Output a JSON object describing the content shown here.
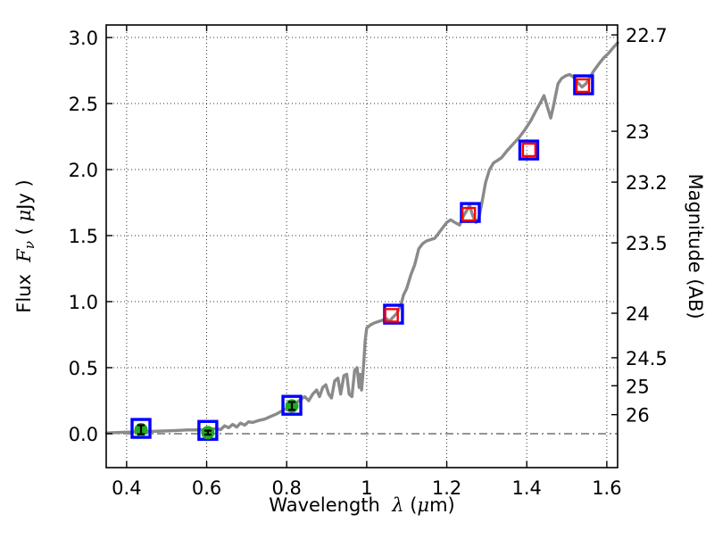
{
  "chart_data": {
    "type": "line",
    "title": "",
    "xlabel": "Wavelength λ (μm)",
    "ylabel_left": "Flux Fν ( μJy )",
    "ylabel_right": "Magnitude (AB)",
    "xlabel_parts": [
      {
        "t": "Wavelength  ",
        "f": "sans"
      },
      {
        "t": "λ",
        "f": "it"
      },
      {
        "t": " (",
        "f": "sans"
      },
      {
        "t": "μ",
        "f": "it"
      },
      {
        "t": "m)",
        "f": "sans"
      }
    ],
    "ylabel_left_parts": [
      {
        "t": "Flux  ",
        "f": "sans"
      },
      {
        "t": "F",
        "f": "it"
      },
      {
        "t": "ν",
        "f": "it",
        "sub": true
      },
      {
        "t": " ( ",
        "f": "sans"
      },
      {
        "t": "μ",
        "f": "it"
      },
      {
        "t": "Jy )",
        "f": "sans"
      }
    ],
    "xlim": [
      0.349,
      1.627
    ],
    "ylim": [
      -0.257,
      3.095
    ],
    "grid": true,
    "x_ticks": [
      0.4,
      0.6,
      0.8,
      1.0,
      1.2,
      1.4,
      1.6
    ],
    "x_tick_labels": [
      "0.4",
      "0.6",
      "0.8",
      "1",
      "1.2",
      "1.4",
      "1.6"
    ],
    "y_ticks_left": [
      0.0,
      0.5,
      1.0,
      1.5,
      2.0,
      2.5,
      3.0
    ],
    "y_tick_labels_left": [
      "0.0",
      "0.5",
      "1.0",
      "1.5",
      "2.0",
      "2.5",
      "3.0"
    ],
    "y_ticks_right": [
      {
        "label": "22.7",
        "flux": 3.02
      },
      {
        "label": "23",
        "flux": 2.29
      },
      {
        "label": "23.2",
        "flux": 1.905
      },
      {
        "label": "23.5",
        "flux": 1.445
      },
      {
        "label": "24",
        "flux": 0.912
      },
      {
        "label": "24.5",
        "flux": 0.575
      },
      {
        "label": "25",
        "flux": 0.363
      },
      {
        "label": "26",
        "flux": 0.144
      }
    ],
    "zero_line_flux": 0.0,
    "colors": {
      "spectrum": "#8a8a8a",
      "blue_square": "#0000ff",
      "red_square": "#ff0000",
      "green_circle": "#22aa22",
      "error_bar": "#000000",
      "grid": "#000000",
      "zero_line": "#555555",
      "spine": "#000000"
    },
    "series": [
      {
        "name": "model-spectrum",
        "type": "line",
        "x_y": [
          [
            0.35,
            0.005
          ],
          [
            0.37,
            0.008
          ],
          [
            0.39,
            0.01
          ],
          [
            0.41,
            0.012
          ],
          [
            0.43,
            0.015
          ],
          [
            0.45,
            0.018
          ],
          [
            0.47,
            0.018
          ],
          [
            0.49,
            0.02
          ],
          [
            0.51,
            0.022
          ],
          [
            0.53,
            0.025
          ],
          [
            0.55,
            0.028
          ],
          [
            0.57,
            0.028
          ],
          [
            0.59,
            0.03
          ],
          [
            0.61,
            0.035
          ],
          [
            0.625,
            0.038
          ],
          [
            0.635,
            0.03
          ],
          [
            0.645,
            0.06
          ],
          [
            0.655,
            0.045
          ],
          [
            0.665,
            0.07
          ],
          [
            0.675,
            0.05
          ],
          [
            0.685,
            0.08
          ],
          [
            0.695,
            0.065
          ],
          [
            0.705,
            0.09
          ],
          [
            0.715,
            0.085
          ],
          [
            0.73,
            0.1
          ],
          [
            0.745,
            0.11
          ],
          [
            0.76,
            0.13
          ],
          [
            0.775,
            0.15
          ],
          [
            0.79,
            0.175
          ],
          [
            0.805,
            0.2
          ],
          [
            0.815,
            0.22
          ],
          [
            0.825,
            0.235
          ],
          [
            0.835,
            0.26
          ],
          [
            0.845,
            0.28
          ],
          [
            0.855,
            0.25
          ],
          [
            0.865,
            0.3
          ],
          [
            0.875,
            0.33
          ],
          [
            0.882,
            0.28
          ],
          [
            0.89,
            0.35
          ],
          [
            0.898,
            0.37
          ],
          [
            0.905,
            0.3
          ],
          [
            0.912,
            0.27
          ],
          [
            0.92,
            0.4
          ],
          [
            0.928,
            0.42
          ],
          [
            0.935,
            0.3
          ],
          [
            0.943,
            0.44
          ],
          [
            0.95,
            0.45
          ],
          [
            0.956,
            0.3
          ],
          [
            0.963,
            0.28
          ],
          [
            0.97,
            0.48
          ],
          [
            0.976,
            0.5
          ],
          [
            0.981,
            0.35
          ],
          [
            0.984,
            0.45
          ],
          [
            0.987,
            0.33
          ],
          [
            0.99,
            0.43
          ],
          [
            0.993,
            0.55
          ],
          [
            0.996,
            0.7
          ],
          [
            1.0,
            0.8
          ],
          [
            1.01,
            0.825
          ],
          [
            1.02,
            0.84
          ],
          [
            1.03,
            0.85
          ],
          [
            1.04,
            0.86
          ],
          [
            1.05,
            0.87
          ],
          [
            1.057,
            0.85
          ],
          [
            1.065,
            0.88
          ],
          [
            1.075,
            0.91
          ],
          [
            1.085,
            0.97
          ],
          [
            1.092,
            1.05
          ],
          [
            1.1,
            1.1
          ],
          [
            1.11,
            1.2
          ],
          [
            1.12,
            1.28
          ],
          [
            1.13,
            1.4
          ],
          [
            1.14,
            1.44
          ],
          [
            1.15,
            1.46
          ],
          [
            1.16,
            1.47
          ],
          [
            1.17,
            1.48
          ],
          [
            1.18,
            1.52
          ],
          [
            1.19,
            1.56
          ],
          [
            1.2,
            1.6
          ],
          [
            1.21,
            1.62
          ],
          [
            1.22,
            1.6
          ],
          [
            1.232,
            1.58
          ],
          [
            1.242,
            1.65
          ],
          [
            1.25,
            1.69
          ],
          [
            1.257,
            1.73
          ],
          [
            1.265,
            1.65
          ],
          [
            1.273,
            1.6
          ],
          [
            1.28,
            1.63
          ],
          [
            1.288,
            1.75
          ],
          [
            1.297,
            1.9
          ],
          [
            1.307,
            2.0
          ],
          [
            1.317,
            2.05
          ],
          [
            1.327,
            2.07
          ],
          [
            1.337,
            2.09
          ],
          [
            1.35,
            2.14
          ],
          [
            1.365,
            2.19
          ],
          [
            1.38,
            2.24
          ],
          [
            1.395,
            2.3
          ],
          [
            1.41,
            2.37
          ],
          [
            1.422,
            2.44
          ],
          [
            1.433,
            2.5
          ],
          [
            1.443,
            2.56
          ],
          [
            1.452,
            2.47
          ],
          [
            1.46,
            2.39
          ],
          [
            1.468,
            2.5
          ],
          [
            1.478,
            2.65
          ],
          [
            1.487,
            2.69
          ],
          [
            1.497,
            2.71
          ],
          [
            1.507,
            2.72
          ],
          [
            1.517,
            2.7
          ],
          [
            1.527,
            2.66
          ],
          [
            1.538,
            2.625
          ],
          [
            1.548,
            2.65
          ],
          [
            1.558,
            2.7
          ],
          [
            1.568,
            2.75
          ],
          [
            1.58,
            2.8
          ],
          [
            1.592,
            2.845
          ],
          [
            1.604,
            2.88
          ],
          [
            1.615,
            2.92
          ],
          [
            1.627,
            2.96
          ]
        ]
      },
      {
        "name": "photometry-blue-squares",
        "type": "open-square",
        "x_y": [
          [
            0.436,
            0.04
          ],
          [
            0.603,
            0.025
          ],
          [
            0.813,
            0.215
          ],
          [
            1.067,
            0.905
          ],
          [
            1.259,
            1.675
          ],
          [
            1.405,
            2.148
          ],
          [
            1.542,
            2.642
          ]
        ]
      },
      {
        "name": "model-photometry-red-squares",
        "type": "open-square",
        "x_y": [
          [
            1.062,
            0.896
          ],
          [
            1.255,
            1.662
          ],
          [
            1.406,
            2.149
          ],
          [
            1.54,
            2.636
          ]
        ]
      },
      {
        "name": "observed-green-circles",
        "type": "filled-circle-errorbar",
        "x_y_err": [
          [
            0.436,
            0.03,
            0.034
          ],
          [
            0.603,
            0.008,
            0.015
          ],
          [
            0.813,
            0.21,
            0.03
          ]
        ]
      }
    ]
  }
}
